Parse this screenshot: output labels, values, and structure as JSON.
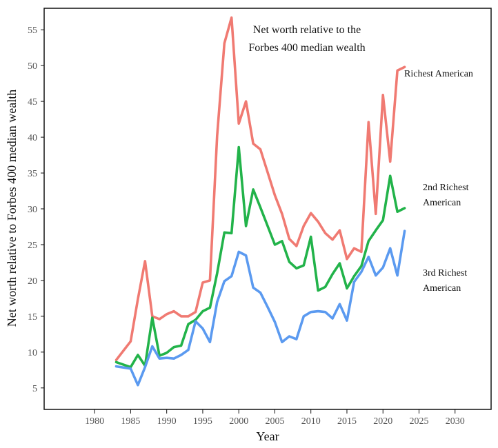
{
  "chart_data": {
    "type": "line",
    "title_lines": [
      "Net worth relative to the",
      "Forbes 400 median wealth"
    ],
    "xlabel": "Year",
    "ylabel": "Net worth relative to Forbes 400 median wealth",
    "xlim": [
      1973,
      2035
    ],
    "ylim": [
      2,
      58
    ],
    "xticks": [
      1980,
      1985,
      1990,
      1995,
      2000,
      2005,
      2010,
      2015,
      2020,
      2025,
      2030
    ],
    "yticks": [
      5,
      10,
      15,
      20,
      25,
      30,
      35,
      40,
      45,
      50,
      55
    ],
    "grid": false,
    "legend": "none",
    "series": [
      {
        "name_lines": [
          "Richest American"
        ],
        "color": "#f07a72",
        "x": [
          1983,
          1985,
          1986,
          1987,
          1988,
          1989,
          1990,
          1991,
          1992,
          1993,
          1994,
          1995,
          1996,
          1997,
          1998,
          1999,
          2000,
          2001,
          2002,
          2003,
          2004,
          2005,
          2006,
          2007,
          2008,
          2009,
          2010,
          2011,
          2012,
          2013,
          2014,
          2015,
          2016,
          2017,
          2018,
          2019,
          2020,
          2021,
          2022,
          2023
        ],
        "y": [
          8.9,
          11.5,
          17.4,
          22.7,
          15.0,
          14.6,
          15.3,
          15.7,
          15.0,
          15.0,
          15.6,
          19.7,
          20.0,
          40.2,
          53.1,
          56.7,
          41.9,
          45.0,
          39.1,
          38.3,
          35.1,
          31.9,
          29.3,
          25.8,
          24.8,
          27.6,
          29.4,
          28.2,
          26.6,
          25.7,
          27.0,
          23.0,
          24.5,
          24.0,
          42.1,
          29.3,
          45.9,
          36.6,
          49.3,
          49.8
        ]
      },
      {
        "name_lines": [
          "2nd Richest",
          "American"
        ],
        "color": "#22b34a",
        "x": [
          1983,
          1985,
          1986,
          1987,
          1988,
          1989,
          1990,
          1991,
          1992,
          1993,
          1994,
          1995,
          1996,
          1997,
          1998,
          1999,
          2000,
          2001,
          2002,
          2003,
          2004,
          2005,
          2006,
          2007,
          2008,
          2009,
          2010,
          2011,
          2012,
          2013,
          2014,
          2015,
          2016,
          2017,
          2018,
          2019,
          2020,
          2021,
          2022,
          2023
        ],
        "y": [
          8.6,
          7.9,
          9.6,
          8.1,
          14.8,
          9.5,
          9.9,
          10.7,
          10.9,
          13.9,
          14.5,
          15.7,
          16.2,
          21.0,
          26.7,
          26.6,
          38.6,
          27.6,
          32.7,
          30.2,
          27.6,
          25.0,
          25.5,
          22.6,
          21.7,
          22.1,
          26.1,
          18.6,
          19.1,
          20.9,
          22.4,
          18.9,
          20.6,
          22.0,
          25.5,
          27.0,
          28.4,
          34.6,
          29.6,
          30.1
        ]
      },
      {
        "name_lines": [
          "3rd Richest",
          "American"
        ],
        "color": "#5b9af0",
        "x": [
          1983,
          1985,
          1986,
          1987,
          1988,
          1989,
          1990,
          1991,
          1992,
          1993,
          1994,
          1995,
          1996,
          1997,
          1998,
          1999,
          2000,
          2001,
          2002,
          2003,
          2004,
          2005,
          2006,
          2007,
          2008,
          2009,
          2010,
          2011,
          2012,
          2013,
          2014,
          2015,
          2016,
          2017,
          2018,
          2019,
          2020,
          2021,
          2022,
          2023
        ],
        "y": [
          8.0,
          7.7,
          5.4,
          7.9,
          10.8,
          9.1,
          9.2,
          9.1,
          9.6,
          10.3,
          14.3,
          13.3,
          11.4,
          17.0,
          19.9,
          20.6,
          24.0,
          23.5,
          19.0,
          18.3,
          16.3,
          14.2,
          11.4,
          12.2,
          11.8,
          15.0,
          15.6,
          15.7,
          15.6,
          14.7,
          16.7,
          14.4,
          19.8,
          21.2,
          23.3,
          20.7,
          21.8,
          24.5,
          20.7,
          26.9
        ]
      }
    ]
  }
}
